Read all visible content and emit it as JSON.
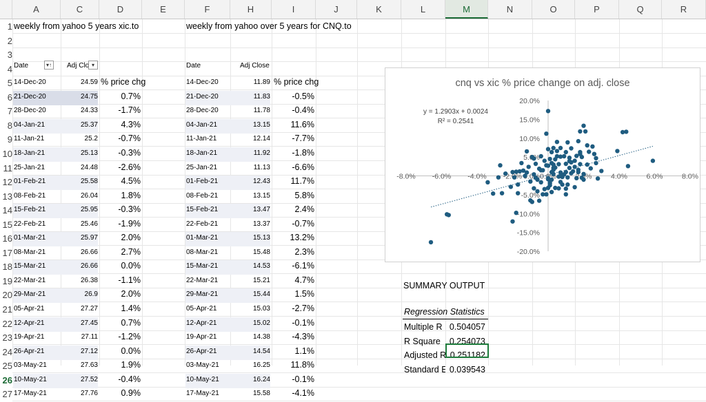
{
  "columns": [
    "A",
    "C",
    "D",
    "E",
    "F",
    "H",
    "I",
    "J",
    "K",
    "L",
    "M",
    "N",
    "O",
    "P",
    "Q",
    "R"
  ],
  "rows": [
    "1",
    "2",
    "3",
    "4",
    "5",
    "6",
    "7",
    "8",
    "9",
    "10",
    "11",
    "12",
    "13",
    "14",
    "15",
    "16",
    "17",
    "18",
    "19",
    "20",
    "21",
    "22",
    "23",
    "24",
    "25",
    "26",
    "27"
  ],
  "titles": {
    "xic": "weekly from yahoo 5 years xic.to",
    "cnq": "weekly from yahoo over 5 years for CNQ.to"
  },
  "xic_headers": {
    "date": "Date",
    "adj": "Adj Clo"
  },
  "cnq_headers": {
    "date": "Date",
    "adj": "Adj Close"
  },
  "pct_header": "% price chg",
  "xic_rows": [
    {
      "date": "14-Dec-20",
      "adj": "24.59",
      "pct": ""
    },
    {
      "date": "21-Dec-20",
      "adj": "24.75",
      "pct": "0.7%"
    },
    {
      "date": "28-Dec-20",
      "adj": "24.33",
      "pct": "-1.7%"
    },
    {
      "date": "04-Jan-21",
      "adj": "25.37",
      "pct": "4.3%"
    },
    {
      "date": "11-Jan-21",
      "adj": "25.2",
      "pct": "-0.7%"
    },
    {
      "date": "18-Jan-21",
      "adj": "25.13",
      "pct": "-0.3%"
    },
    {
      "date": "25-Jan-21",
      "adj": "24.48",
      "pct": "-2.6%"
    },
    {
      "date": "01-Feb-21",
      "adj": "25.58",
      "pct": "4.5%"
    },
    {
      "date": "08-Feb-21",
      "adj": "26.04",
      "pct": "1.8%"
    },
    {
      "date": "15-Feb-21",
      "adj": "25.95",
      "pct": "-0.3%"
    },
    {
      "date": "22-Feb-21",
      "adj": "25.46",
      "pct": "-1.9%"
    },
    {
      "date": "01-Mar-21",
      "adj": "25.97",
      "pct": "2.0%"
    },
    {
      "date": "08-Mar-21",
      "adj": "26.66",
      "pct": "2.7%"
    },
    {
      "date": "15-Mar-21",
      "adj": "26.66",
      "pct": "0.0%"
    },
    {
      "date": "22-Mar-21",
      "adj": "26.38",
      "pct": "-1.1%"
    },
    {
      "date": "29-Mar-21",
      "adj": "26.9",
      "pct": "2.0%"
    },
    {
      "date": "05-Apr-21",
      "adj": "27.27",
      "pct": "1.4%"
    },
    {
      "date": "12-Apr-21",
      "adj": "27.45",
      "pct": "0.7%"
    },
    {
      "date": "19-Apr-21",
      "adj": "27.11",
      "pct": "-1.2%"
    },
    {
      "date": "26-Apr-21",
      "adj": "27.12",
      "pct": "0.0%"
    },
    {
      "date": "03-May-21",
      "adj": "27.63",
      "pct": "1.9%"
    },
    {
      "date": "10-May-21",
      "adj": "27.52",
      "pct": "-0.4%"
    },
    {
      "date": "17-May-21",
      "adj": "27.76",
      "pct": "0.9%"
    }
  ],
  "cnq_rows": [
    {
      "date": "14-Dec-20",
      "adj": "11.89",
      "pct": ""
    },
    {
      "date": "21-Dec-20",
      "adj": "11.83",
      "pct": "-0.5%"
    },
    {
      "date": "28-Dec-20",
      "adj": "11.78",
      "pct": "-0.4%"
    },
    {
      "date": "04-Jan-21",
      "adj": "13.15",
      "pct": "11.6%"
    },
    {
      "date": "11-Jan-21",
      "adj": "12.14",
      "pct": "-7.7%"
    },
    {
      "date": "18-Jan-21",
      "adj": "11.92",
      "pct": "-1.8%"
    },
    {
      "date": "25-Jan-21",
      "adj": "11.13",
      "pct": "-6.6%"
    },
    {
      "date": "01-Feb-21",
      "adj": "12.43",
      "pct": "11.7%"
    },
    {
      "date": "08-Feb-21",
      "adj": "13.15",
      "pct": "5.8%"
    },
    {
      "date": "15-Feb-21",
      "adj": "13.47",
      "pct": "2.4%"
    },
    {
      "date": "22-Feb-21",
      "adj": "13.37",
      "pct": "-0.7%"
    },
    {
      "date": "01-Mar-21",
      "adj": "15.13",
      "pct": "13.2%"
    },
    {
      "date": "08-Mar-21",
      "adj": "15.48",
      "pct": "2.3%"
    },
    {
      "date": "15-Mar-21",
      "adj": "14.53",
      "pct": "-6.1%"
    },
    {
      "date": "22-Mar-21",
      "adj": "15.21",
      "pct": "4.7%"
    },
    {
      "date": "29-Mar-21",
      "adj": "15.44",
      "pct": "1.5%"
    },
    {
      "date": "05-Apr-21",
      "adj": "15.03",
      "pct": "-2.7%"
    },
    {
      "date": "12-Apr-21",
      "adj": "15.02",
      "pct": "-0.1%"
    },
    {
      "date": "19-Apr-21",
      "adj": "14.38",
      "pct": "-4.3%"
    },
    {
      "date": "26-Apr-21",
      "adj": "14.54",
      "pct": "1.1%"
    },
    {
      "date": "03-May-21",
      "adj": "16.25",
      "pct": "11.8%"
    },
    {
      "date": "10-May-21",
      "adj": "16.24",
      "pct": "-0.1%"
    },
    {
      "date": "17-May-21",
      "adj": "15.58",
      "pct": "-4.1%"
    }
  ],
  "summary": {
    "title": "SUMMARY OUTPUT",
    "stats_header": "Regression Statistics",
    "rows": [
      {
        "label": "Multiple R",
        "value": "0.504057"
      },
      {
        "label": "R Square",
        "value": "0.254073"
      },
      {
        "label": "Adjusted R",
        "value": "0.251182"
      },
      {
        "label": "Standard E",
        "value": "0.039543"
      }
    ]
  },
  "colors": {
    "marker": "#1f5c80",
    "selected": "#1c7a3a"
  },
  "chart_data": {
    "type": "scatter",
    "title": "cnq vs xic % price change on adj. close",
    "xlim": [
      -0.08,
      0.08
    ],
    "ylim": [
      -0.2,
      0.2
    ],
    "xticks": [
      "-8.0%",
      "-6.0%",
      "-4.0%",
      "-2.0%",
      "0.0%",
      "2.0%",
      "4.0%",
      "6.0%",
      "8.0%"
    ],
    "yticks": [
      "20.0%",
      "15.0%",
      "10.0%",
      "5.0%",
      "0.0%",
      "-5.0%",
      "-10.0%",
      "-15.0%",
      "-20.0%"
    ],
    "trendline": {
      "equation": "y = 1.2903x + 0.0024",
      "r2": "R² = 0.2541",
      "slope": 1.2903,
      "intercept": 0.0024
    },
    "grid": false,
    "points": [
      [
        -0.066,
        -0.176
      ],
      [
        -0.057,
        -0.102
      ],
      [
        -0.056,
        -0.104
      ],
      [
        -0.02,
        -0.121
      ],
      [
        -0.018,
        -0.098
      ],
      [
        0.0,
        0.172
      ],
      [
        0.059,
        0.04
      ],
      [
        0.044,
        0.117
      ],
      [
        0.042,
        0.116
      ],
      [
        0.039,
        0.066
      ],
      [
        0.02,
        0.133
      ],
      [
        0.018,
        0.118
      ],
      [
        -0.001,
        0.112
      ],
      [
        -0.012,
        0.065
      ],
      [
        0.007,
        0.0
      ],
      [
        0.027,
        0.047
      ],
      [
        0.045,
        0.026
      ],
      [
        0.02,
        0.005
      ],
      [
        -0.007,
        0.032
      ],
      [
        0.001,
        -0.02
      ],
      [
        0.014,
        0.012
      ],
      [
        0.018,
        0.063
      ],
      [
        -0.017,
        -0.023
      ],
      [
        0.019,
        -0.005
      ],
      [
        0.002,
        0.01
      ],
      [
        -0.004,
        0.015
      ],
      [
        0.003,
        0.021
      ],
      [
        0.007,
        0.009
      ],
      [
        -0.003,
        0.015
      ],
      [
        0.003,
        0.005
      ],
      [
        0.002,
        0.034
      ],
      [
        0.003,
        0.03
      ],
      [
        0.001,
        -0.025
      ],
      [
        0.004,
        -0.032
      ],
      [
        0.028,
        -0.007
      ],
      [
        0.016,
        -0.006
      ],
      [
        0.025,
        0.078
      ],
      [
        -0.013,
        0.0
      ],
      [
        0.009,
        0.004
      ],
      [
        0.012,
        0.039
      ],
      [
        -0.019,
        -0.004
      ],
      [
        0.004,
        0.022
      ],
      [
        -0.01,
        -0.015
      ],
      [
        0.0,
        -0.006
      ],
      [
        -0.028,
        -0.004
      ],
      [
        -0.034,
        -0.017
      ],
      [
        -0.031,
        -0.047
      ],
      [
        -0.027,
        0.028
      ],
      [
        -0.021,
        -0.029
      ],
      [
        -0.026,
        -0.046
      ],
      [
        -0.02,
        0.01
      ],
      [
        -0.024,
        0.006
      ],
      [
        -0.012,
        0.009
      ],
      [
        -0.015,
        0.034
      ],
      [
        -0.007,
        -0.005
      ],
      [
        -0.005,
        0.019
      ],
      [
        0.008,
        -0.003
      ],
      [
        0.006,
        0.031
      ],
      [
        0.01,
        0.01
      ],
      [
        0.015,
        0.04
      ],
      [
        0.011,
        -0.004
      ],
      [
        0.005,
        0.052
      ],
      [
        0.013,
        0.073
      ],
      [
        0.022,
        0.03
      ],
      [
        0.018,
        0.058
      ],
      [
        0.024,
        0.02
      ],
      [
        0.027,
        0.034
      ],
      [
        0.03,
        0.013
      ],
      [
        0.011,
        0.089
      ],
      [
        0.017,
        0.092
      ],
      [
        0.021,
        0.118
      ],
      [
        0.002,
        0.063
      ],
      [
        0.0,
        0.071
      ],
      [
        0.003,
        0.074
      ],
      [
        0.007,
        0.074
      ],
      [
        0.012,
        0.021
      ],
      [
        0.007,
        -0.016
      ],
      [
        -0.008,
        -0.033
      ],
      [
        -0.004,
        -0.017
      ],
      [
        0.0,
        -0.032
      ],
      [
        0.006,
        -0.033
      ],
      [
        0.002,
        -0.043
      ],
      [
        -0.017,
        -0.046
      ],
      [
        -0.001,
        -0.049
      ],
      [
        -0.005,
        -0.066
      ],
      [
        -0.009,
        -0.069
      ],
      [
        -0.006,
        -0.041
      ],
      [
        -0.003,
        -0.049
      ],
      [
        -0.01,
        -0.065
      ],
      [
        0.015,
        -0.03
      ],
      [
        0.01,
        -0.034
      ],
      [
        0.0,
        -0.009
      ],
      [
        0.004,
        0.044
      ],
      [
        -0.002,
        0.04
      ],
      [
        -0.008,
        0.046
      ],
      [
        -0.018,
        0.011
      ],
      [
        -0.016,
        0.012
      ],
      [
        0.022,
        0.081
      ],
      [
        0.005,
        0.09
      ],
      [
        0.009,
        0.052
      ],
      [
        0.01,
        0.032
      ],
      [
        0.026,
        0.058
      ],
      [
        0.007,
        0.051
      ],
      [
        0.001,
        0.045
      ],
      [
        0.013,
        0.036
      ],
      [
        0.017,
        0.01
      ],
      [
        0.02,
        -0.01
      ],
      [
        0.019,
        0.05
      ],
      [
        -0.001,
        0.028
      ],
      [
        0.002,
        -0.01
      ],
      [
        0.01,
        -0.049
      ],
      [
        -0.006,
        -0.01
      ],
      [
        -0.008,
        0.004
      ],
      [
        -0.014,
        0.014
      ],
      [
        0.016,
        0.053
      ],
      [
        0.013,
        0.007
      ],
      [
        0.003,
        0.016
      ],
      [
        -0.009,
        0.05
      ],
      [
        -0.004,
        0.052
      ],
      [
        0.01,
        0.063
      ],
      [
        0.005,
        0.066
      ],
      [
        0.012,
        0.048
      ],
      [
        0.015,
        0.024
      ],
      [
        0.023,
        0.064
      ],
      [
        0.018,
        0.031
      ],
      [
        0.0,
        0.027
      ],
      [
        -0.011,
        0.024
      ],
      [
        0.017,
        0.016
      ],
      [
        0.001,
        -0.018
      ],
      [
        0.008,
        -0.023
      ],
      [
        0.011,
        -0.023
      ],
      [
        -0.002,
        -0.035
      ],
      [
        0.006,
        -0.002
      ]
    ]
  }
}
